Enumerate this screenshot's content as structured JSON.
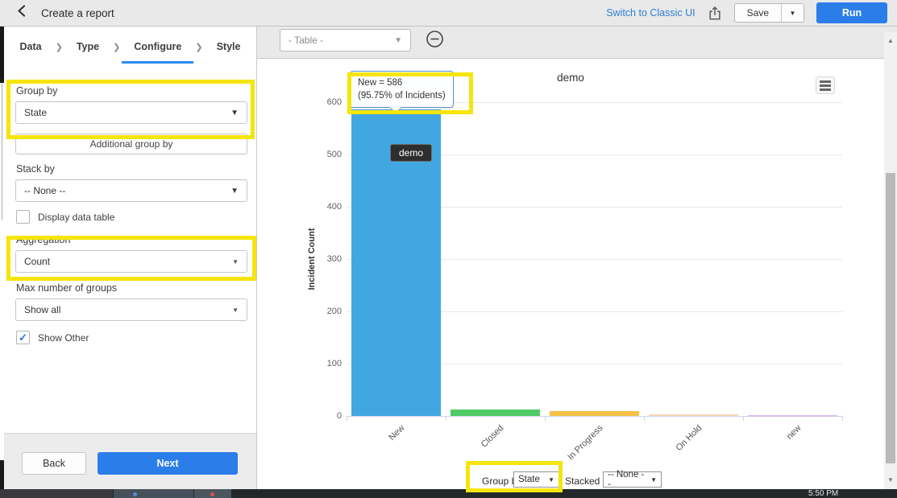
{
  "header": {
    "title": "Create a report",
    "switch_link": "Switch to Classic UI",
    "save_label": "Save",
    "run_label": "Run"
  },
  "breadcrumb": {
    "steps": [
      "Data",
      "Type",
      "Configure",
      "Style"
    ],
    "active_step": "Configure"
  },
  "sidebar": {
    "group_by_label": "Group by",
    "group_by_value": "State",
    "additional_group_by_label": "Additional group by",
    "stack_by_label": "Stack by",
    "stack_by_value": "-- None --",
    "display_data_table_label": "Display data table",
    "display_data_table_checked": false,
    "aggregation_label": "Aggregation",
    "aggregation_value": "Count",
    "max_groups_label": "Max number of groups",
    "max_groups_value": "Show all",
    "show_other_label": "Show Other",
    "show_other_checked": true,
    "back_label": "Back",
    "next_label": "Next"
  },
  "toolbar": {
    "table_selector_value": "- Table -"
  },
  "chart": {
    "title": "demo",
    "y_axis_label": "Incident Count",
    "tooltip_line1": "New = 586",
    "tooltip_line2": "(95.75% of Incidents)",
    "bar_flag_label": "demo"
  },
  "chart_data": {
    "type": "bar",
    "title": "demo",
    "categories": [
      "New",
      "Closed",
      "In Progress",
      "On Hold",
      "new"
    ],
    "values": [
      586,
      12,
      9,
      3,
      2
    ],
    "colors": [
      "#41a7e0",
      "#4ecb66",
      "#f6c245",
      "#f5d9b4",
      "#ddbcee"
    ],
    "xlabel": "",
    "ylabel": "Incident Count",
    "ylim": [
      0,
      600
    ],
    "yticks": [
      0,
      100,
      200,
      300,
      400,
      500,
      600
    ],
    "grid": true,
    "legend": false,
    "annotations": [
      "New = 586 (95.75% of Incidents)",
      "demo"
    ]
  },
  "footer_controls": {
    "group_by_label": "Group by",
    "group_by_value": "State",
    "stacked_by_label": "Stacked by",
    "stacked_by_value": "-- None --"
  },
  "taskbar": {
    "time": "5:50 PM"
  },
  "icons": {
    "caret_down": "▼",
    "chevron_right": "❯",
    "check": "✓",
    "scroll_up": "▲",
    "scroll_down": "▼"
  },
  "colors": {
    "accent_blue": "#2b7de9",
    "highlight_yellow": "#f5e50b",
    "active_tab_underline": "#2f8cf0"
  }
}
